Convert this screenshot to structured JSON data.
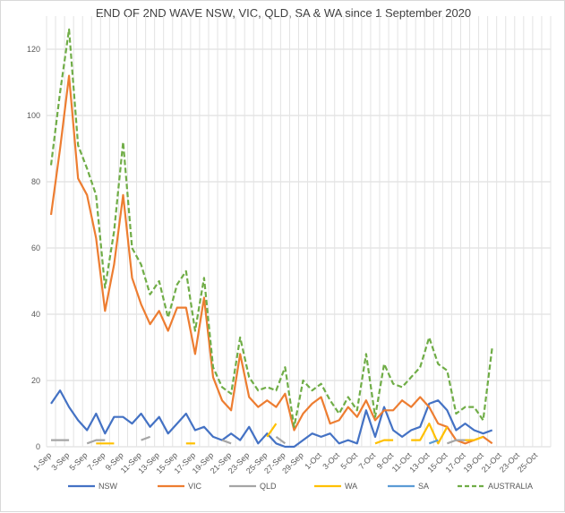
{
  "chart_data": {
    "type": "line",
    "title": "END OF 2ND WAVE NSW, VIC, QLD, SA & WA since 1 September 2020",
    "xlabel": "",
    "ylabel": "",
    "ylim": [
      0,
      130
    ],
    "yticks": [
      0,
      20,
      40,
      60,
      80,
      100,
      120
    ],
    "grid": true,
    "legend": "bottom",
    "categories": [
      "1-Sep",
      "2-Sep",
      "3-Sep",
      "4-Sep",
      "5-Sep",
      "6-Sep",
      "7-Sep",
      "8-Sep",
      "9-Sep",
      "10-Sep",
      "11-Sep",
      "12-Sep",
      "13-Sep",
      "14-Sep",
      "15-Sep",
      "16-Sep",
      "17-Sep",
      "18-Sep",
      "19-Sep",
      "20-Sep",
      "21-Sep",
      "22-Sep",
      "23-Sep",
      "24-Sep",
      "25-Sep",
      "26-Sep",
      "27-Sep",
      "28-Sep",
      "29-Sep",
      "30-Sep",
      "1-Oct",
      "2-Oct",
      "3-Oct",
      "4-Oct",
      "5-Oct",
      "6-Oct",
      "7-Oct",
      "8-Oct",
      "9-Oct",
      "10-Oct",
      "11-Oct",
      "12-Oct",
      "13-Oct",
      "14-Oct",
      "15-Oct",
      "16-Oct",
      "17-Oct",
      "18-Oct",
      "19-Oct",
      "20-Oct",
      "21-Oct",
      "22-Oct",
      "23-Oct",
      "24-Oct",
      "25-Oct",
      "26-Oct"
    ],
    "x_tick_labels": [
      "1-Sep",
      "3-Sep",
      "5-Sep",
      "7-Sep",
      "9-Sep",
      "11-Sep",
      "13-Sep",
      "15-Sep",
      "17-Sep",
      "19-Sep",
      "21-Sep",
      "23-Sep",
      "25-Sep",
      "27-Sep",
      "29-Sep",
      "1-Oct",
      "3-Oct",
      "5-Oct",
      "7-Oct",
      "9-Oct",
      "11-Oct",
      "13-Oct",
      "15-Oct",
      "17-Oct",
      "19-Oct",
      "21-Oct",
      "23-Oct",
      "25-Oct"
    ],
    "series": [
      {
        "name": "NSW",
        "color": "#4472c4",
        "dash": false,
        "values": [
          13,
          17,
          12,
          8,
          5,
          10,
          4,
          9,
          9,
          7,
          10,
          6,
          9,
          4,
          7,
          10,
          5,
          6,
          3,
          2,
          4,
          2,
          6,
          1,
          4,
          1,
          0,
          0,
          2,
          4,
          3,
          4,
          1,
          2,
          1,
          11,
          3,
          12,
          5,
          3,
          5,
          6,
          13,
          14,
          11,
          5,
          7,
          5,
          4,
          5,
          null,
          null,
          null,
          null,
          null,
          null
        ]
      },
      {
        "name": "VIC",
        "color": "#ed7d31",
        "dash": false,
        "values": [
          70,
          90,
          112,
          81,
          76,
          63,
          41,
          55,
          76,
          51,
          43,
          37,
          41,
          35,
          42,
          42,
          28,
          45,
          21,
          14,
          11,
          28,
          15,
          12,
          14,
          12,
          16,
          5,
          10,
          13,
          15,
          7,
          8,
          12,
          9,
          14,
          8,
          11,
          11,
          14,
          12,
          15,
          12,
          7,
          6,
          2,
          1,
          2,
          3,
          1,
          null,
          null,
          null,
          null,
          null,
          null
        ]
      },
      {
        "name": "QLD",
        "color": "#a5a5a5",
        "dash": false,
        "values": [
          2,
          2,
          2,
          null,
          1,
          2,
          2,
          null,
          null,
          null,
          2,
          3,
          null,
          null,
          null,
          null,
          null,
          null,
          null,
          2,
          1,
          null,
          null,
          null,
          null,
          3,
          1,
          null,
          null,
          null,
          null,
          null,
          null,
          null,
          null,
          null,
          null,
          null,
          null,
          null,
          null,
          null,
          null,
          null,
          1,
          2,
          2,
          null,
          null,
          null,
          null,
          null,
          null,
          null,
          null,
          null
        ]
      },
      {
        "name": "WA",
        "color": "#ffc000",
        "dash": false,
        "values": [
          null,
          null,
          null,
          null,
          null,
          1,
          1,
          1,
          null,
          null,
          null,
          null,
          null,
          null,
          null,
          1,
          1,
          null,
          null,
          null,
          null,
          null,
          null,
          null,
          3,
          7,
          null,
          null,
          null,
          null,
          null,
          null,
          null,
          null,
          null,
          null,
          1,
          2,
          2,
          null,
          2,
          2,
          7,
          1,
          6,
          null,
          2,
          2,
          3,
          null,
          null,
          null,
          null,
          null,
          null,
          null
        ]
      },
      {
        "name": "SA",
        "color": "#5b9bd5",
        "dash": false,
        "values": [
          null,
          null,
          null,
          null,
          null,
          null,
          null,
          null,
          null,
          null,
          null,
          null,
          null,
          null,
          null,
          null,
          null,
          null,
          null,
          null,
          null,
          null,
          null,
          null,
          null,
          null,
          null,
          null,
          null,
          null,
          null,
          null,
          null,
          null,
          null,
          null,
          null,
          null,
          null,
          null,
          null,
          null,
          1,
          2,
          null,
          null,
          null,
          null,
          null,
          null,
          null,
          null,
          null,
          null,
          null,
          null
        ]
      },
      {
        "name": "AUSTRALIA",
        "color": "#70ad47",
        "dash": true,
        "values": [
          85,
          107,
          126,
          91,
          84,
          76,
          48,
          65,
          92,
          60,
          55,
          46,
          50,
          39,
          49,
          53,
          35,
          51,
          24,
          18,
          16,
          33,
          21,
          17,
          18,
          17,
          24,
          6,
          20,
          17,
          19,
          14,
          10,
          15,
          11,
          28,
          9,
          25,
          19,
          18,
          21,
          24,
          33,
          25,
          23,
          10,
          12,
          12,
          8,
          30,
          null,
          null,
          null,
          null,
          null,
          null
        ]
      }
    ]
  }
}
